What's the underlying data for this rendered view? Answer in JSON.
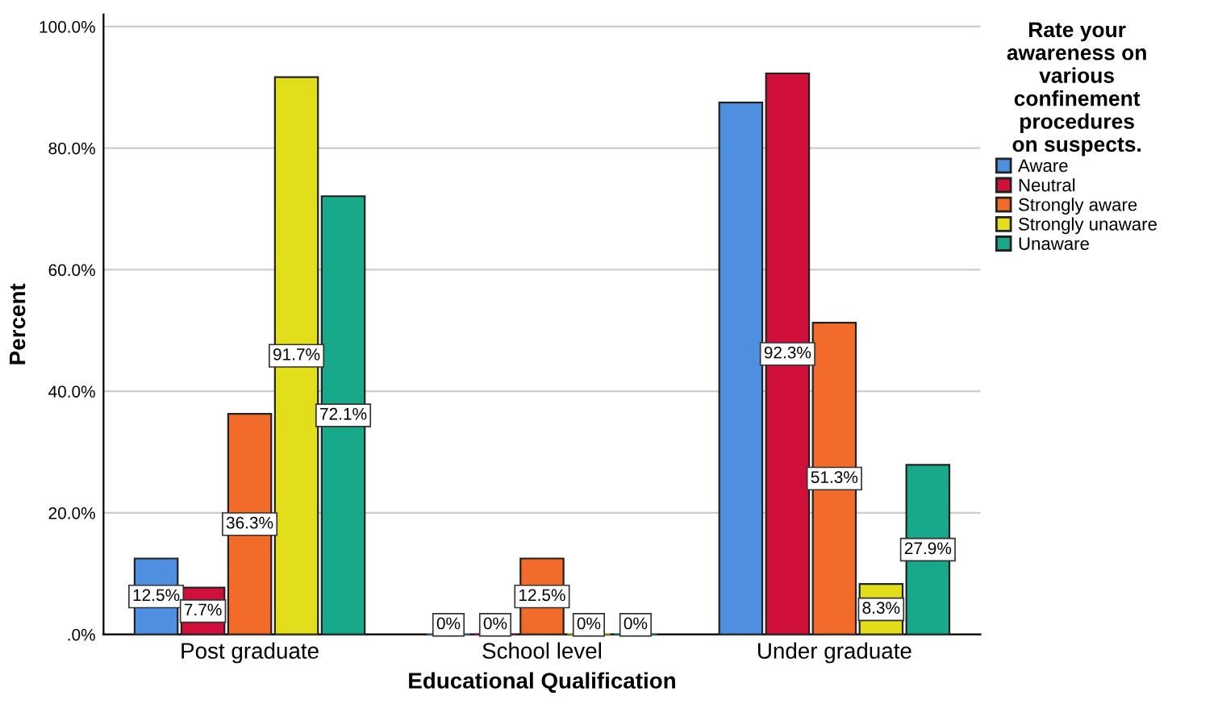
{
  "chart_data": {
    "type": "bar",
    "xlabel": "Educational Qualification",
    "ylabel": "Percent",
    "legend_title": "Rate your\nawareness on\nvarious\nconfinement\nprocedures\non suspects.",
    "categories": [
      "Post graduate",
      "School level",
      "Under graduate"
    ],
    "series": [
      {
        "name": "Aware",
        "color": "#4f8fdf",
        "values": [
          12.5,
          0,
          87.5
        ],
        "value_labels": [
          "12.5%",
          "0%",
          null
        ]
      },
      {
        "name": "Neutral",
        "color": "#d0103a",
        "values": [
          7.7,
          0,
          92.3
        ],
        "value_labels": [
          "7.7%",
          "0%",
          "92.3%"
        ]
      },
      {
        "name": "Strongly aware",
        "color": "#f26b2a",
        "values": [
          36.3,
          12.5,
          51.3
        ],
        "value_labels": [
          "36.3%",
          "12.5%",
          "51.3%"
        ]
      },
      {
        "name": "Strongly unaware",
        "color": "#e2de1b",
        "values": [
          91.7,
          0,
          8.3
        ],
        "value_labels": [
          "91.7%",
          "0%",
          "8.3%"
        ]
      },
      {
        "name": "Unaware",
        "color": "#18a88a",
        "values": [
          72.1,
          0,
          27.9
        ],
        "value_labels": [
          "72.1%",
          "0%",
          "27.9%"
        ]
      }
    ],
    "ylim": [
      0,
      102
    ],
    "yticks": [
      {
        "value": 0,
        "label": ".0%"
      },
      {
        "value": 20,
        "label": "20.0%"
      },
      {
        "value": 40,
        "label": "40.0%"
      },
      {
        "value": 60,
        "label": "60.0%"
      },
      {
        "value": 80,
        "label": "80.0%"
      },
      {
        "value": 100,
        "label": "100.0%"
      }
    ],
    "grid": "y",
    "legend": "top right"
  }
}
